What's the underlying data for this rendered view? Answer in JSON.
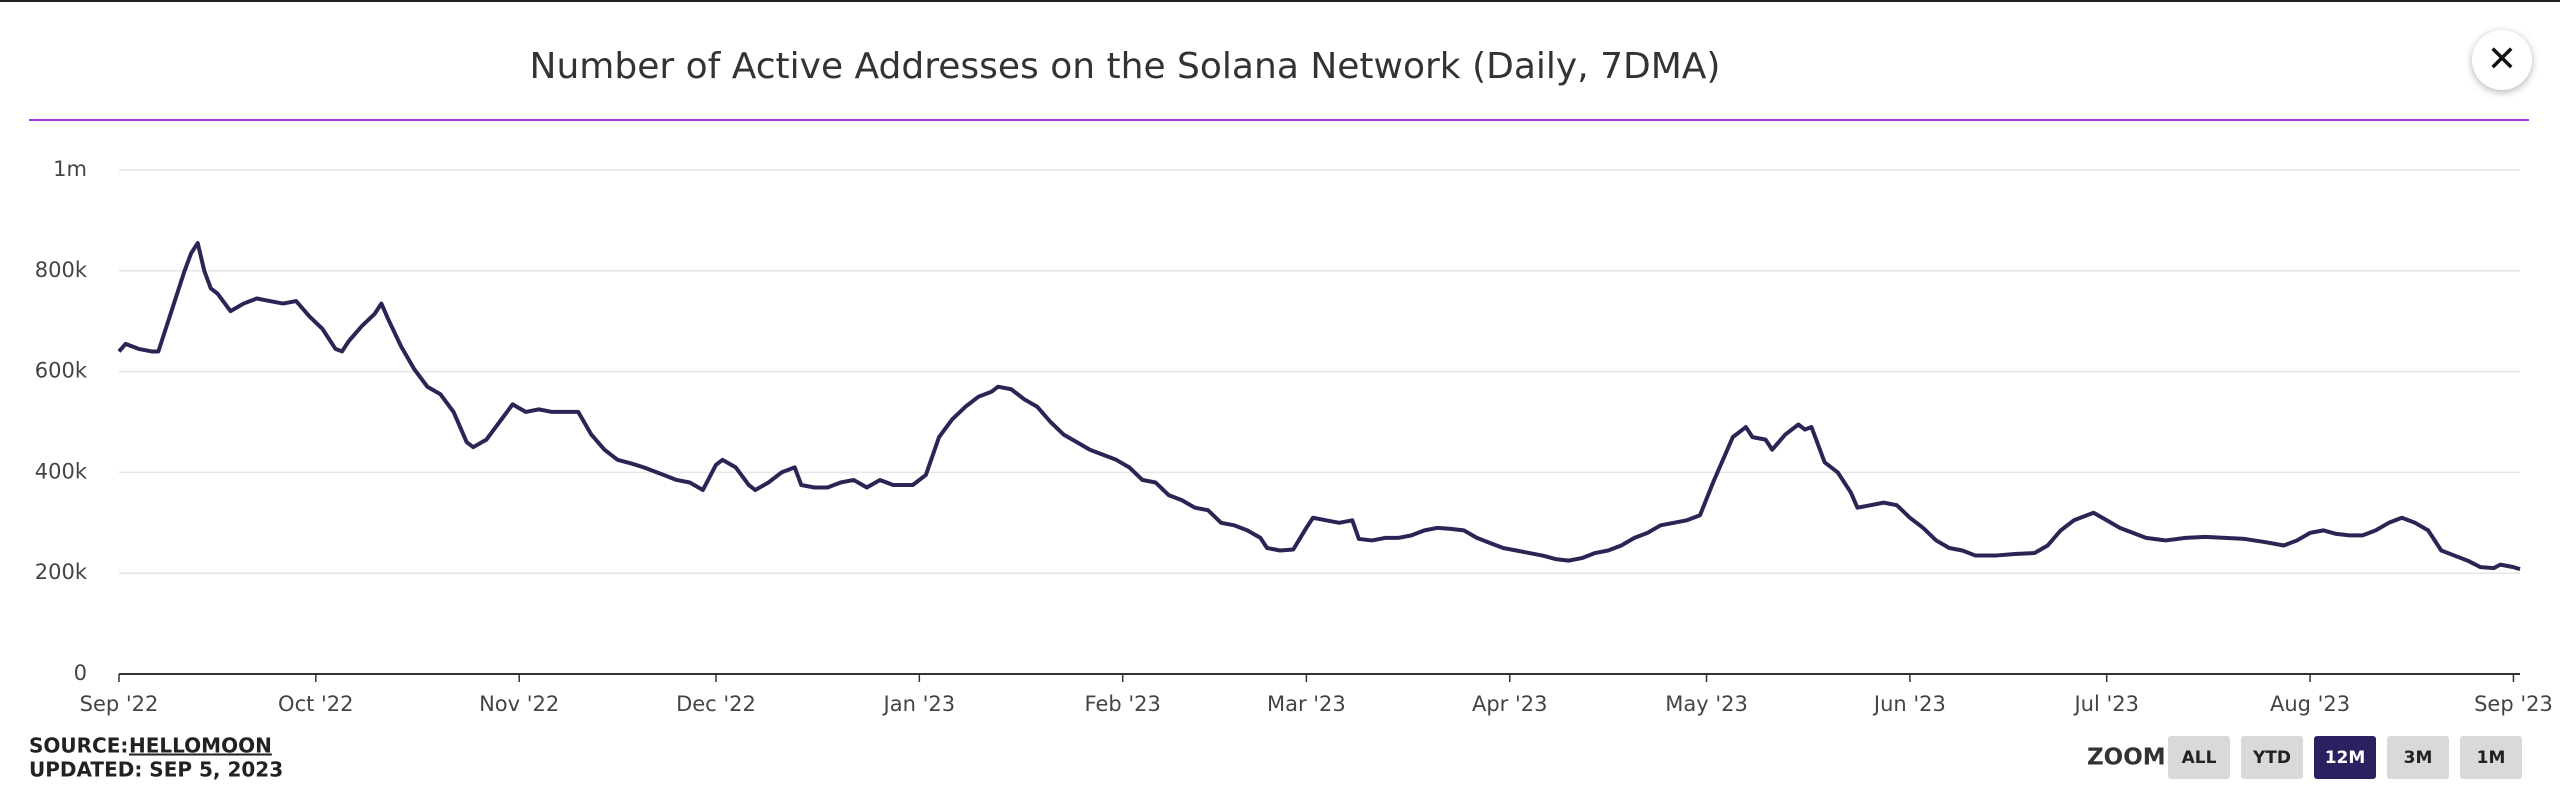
{
  "chart_data": {
    "type": "line",
    "title": "Number of Active Addresses on the Solana Network (Daily, 7DMA)",
    "color": "#2b2555",
    "grid": true,
    "xlim": [
      0,
      366
    ],
    "xticks": [
      {
        "value": 0,
        "label": "Sep '22"
      },
      {
        "value": 30,
        "label": "Oct '22"
      },
      {
        "value": 61,
        "label": "Nov '22"
      },
      {
        "value": 91,
        "label": "Dec '22"
      },
      {
        "value": 122,
        "label": "Jan '23"
      },
      {
        "value": 153,
        "label": "Feb '23"
      },
      {
        "value": 181,
        "label": "Mar '23"
      },
      {
        "value": 212,
        "label": "Apr '23"
      },
      {
        "value": 242,
        "label": "May '23"
      },
      {
        "value": 273,
        "label": "Jun '23"
      },
      {
        "value": 303,
        "label": "Jul '23"
      },
      {
        "value": 334,
        "label": "Aug '23"
      },
      {
        "value": 365,
        "label": "Sep '23"
      }
    ],
    "ylim": [
      0,
      1000000
    ],
    "yticks": [
      0,
      {
        "value": 200000,
        "label": "200k"
      },
      {
        "value": 400000,
        "label": "400k"
      },
      {
        "value": 600000,
        "label": "600k"
      },
      {
        "value": 800000,
        "label": "800k"
      },
      {
        "value": 1000000,
        "label": "1m"
      }
    ],
    "x": [
      0,
      1,
      3,
      5,
      6,
      8,
      10,
      11,
      12,
      13,
      14,
      15,
      17,
      19,
      21,
      23,
      25,
      27,
      29,
      31,
      33,
      34,
      35,
      37,
      39,
      40,
      41,
      43,
      45,
      47,
      49,
      51,
      53,
      54,
      56,
      58,
      60,
      62,
      64,
      66,
      68,
      70,
      72,
      74,
      76,
      78,
      80,
      81,
      83,
      85,
      87,
      89,
      91,
      92,
      94,
      96,
      97,
      99,
      101,
      103,
      104,
      106,
      108,
      110,
      112,
      114,
      116,
      118,
      120,
      121,
      123,
      125,
      127,
      129,
      131,
      133,
      134,
      136,
      138,
      140,
      142,
      144,
      146,
      148,
      150,
      152,
      154,
      156,
      158,
      160,
      162,
      164,
      166,
      168,
      170,
      172,
      174,
      175,
      177,
      179,
      181,
      182,
      184,
      186,
      188,
      189,
      191,
      193,
      195,
      197,
      199,
      201,
      203,
      205,
      207,
      209,
      211,
      213,
      215,
      217,
      219,
      221,
      223,
      225,
      227,
      229,
      231,
      233,
      235,
      237,
      239,
      241,
      243,
      245,
      246,
      248,
      249,
      251,
      252,
      254,
      256,
      257,
      258,
      260,
      262,
      264,
      265,
      267,
      269,
      271,
      273,
      275,
      277,
      279,
      281,
      283,
      286,
      289,
      292,
      294,
      296,
      298,
      301,
      303,
      305,
      307,
      309,
      312,
      315,
      318,
      321,
      324,
      327,
      330,
      332,
      334,
      336,
      338,
      340,
      342,
      344,
      346,
      348,
      350,
      352,
      354,
      356,
      358,
      360,
      362,
      363,
      365,
      366
    ],
    "values": [
      640000,
      655000,
      645000,
      640000,
      640000,
      720000,
      800000,
      835000,
      855000,
      800000,
      765000,
      755000,
      720000,
      735000,
      745000,
      740000,
      735000,
      740000,
      710000,
      685000,
      645000,
      640000,
      660000,
      690000,
      715000,
      735000,
      705000,
      650000,
      605000,
      570000,
      555000,
      520000,
      460000,
      450000,
      465000,
      500000,
      535000,
      520000,
      525000,
      520000,
      520000,
      520000,
      475000,
      445000,
      425000,
      418000,
      410000,
      405000,
      395000,
      385000,
      380000,
      365000,
      415000,
      425000,
      410000,
      375000,
      365000,
      380000,
      400000,
      410000,
      375000,
      370000,
      370000,
      380000,
      385000,
      370000,
      385000,
      375000,
      375000,
      375000,
      395000,
      470000,
      505000,
      530000,
      550000,
      560000,
      570000,
      565000,
      545000,
      530000,
      500000,
      475000,
      460000,
      445000,
      435000,
      425000,
      410000,
      385000,
      380000,
      355000,
      345000,
      330000,
      325000,
      300000,
      295000,
      285000,
      270000,
      250000,
      245000,
      247000,
      290000,
      310000,
      305000,
      300000,
      305000,
      268000,
      265000,
      270000,
      270000,
      275000,
      285000,
      290000,
      288000,
      285000,
      270000,
      260000,
      250000,
      245000,
      240000,
      235000,
      228000,
      225000,
      230000,
      240000,
      245000,
      255000,
      270000,
      280000,
      295000,
      300000,
      305000,
      315000,
      380000,
      440000,
      470000,
      490000,
      470000,
      465000,
      445000,
      475000,
      495000,
      485000,
      490000,
      420000,
      400000,
      360000,
      330000,
      335000,
      340000,
      335000,
      310000,
      290000,
      265000,
      250000,
      245000,
      235000,
      235000,
      238000,
      240000,
      255000,
      285000,
      305000,
      320000,
      305000,
      290000,
      280000,
      270000,
      265000,
      270000,
      272000,
      270000,
      268000,
      262000,
      255000,
      265000,
      280000,
      285000,
      278000,
      275000,
      275000,
      285000,
      300000,
      310000,
      300000,
      285000,
      245000,
      235000,
      225000,
      212000,
      210000,
      217000,
      212000,
      208000
    ]
  },
  "footer": {
    "source_label": "SOURCE:",
    "source": "HELLOMOON",
    "updated": "UPDATED: SEP 5, 2023"
  },
  "zoom": {
    "label": "ZOOM",
    "buttons": [
      "ALL",
      "YTD",
      "12M",
      "3M",
      "1M"
    ],
    "active": "12M"
  },
  "close": "✕"
}
